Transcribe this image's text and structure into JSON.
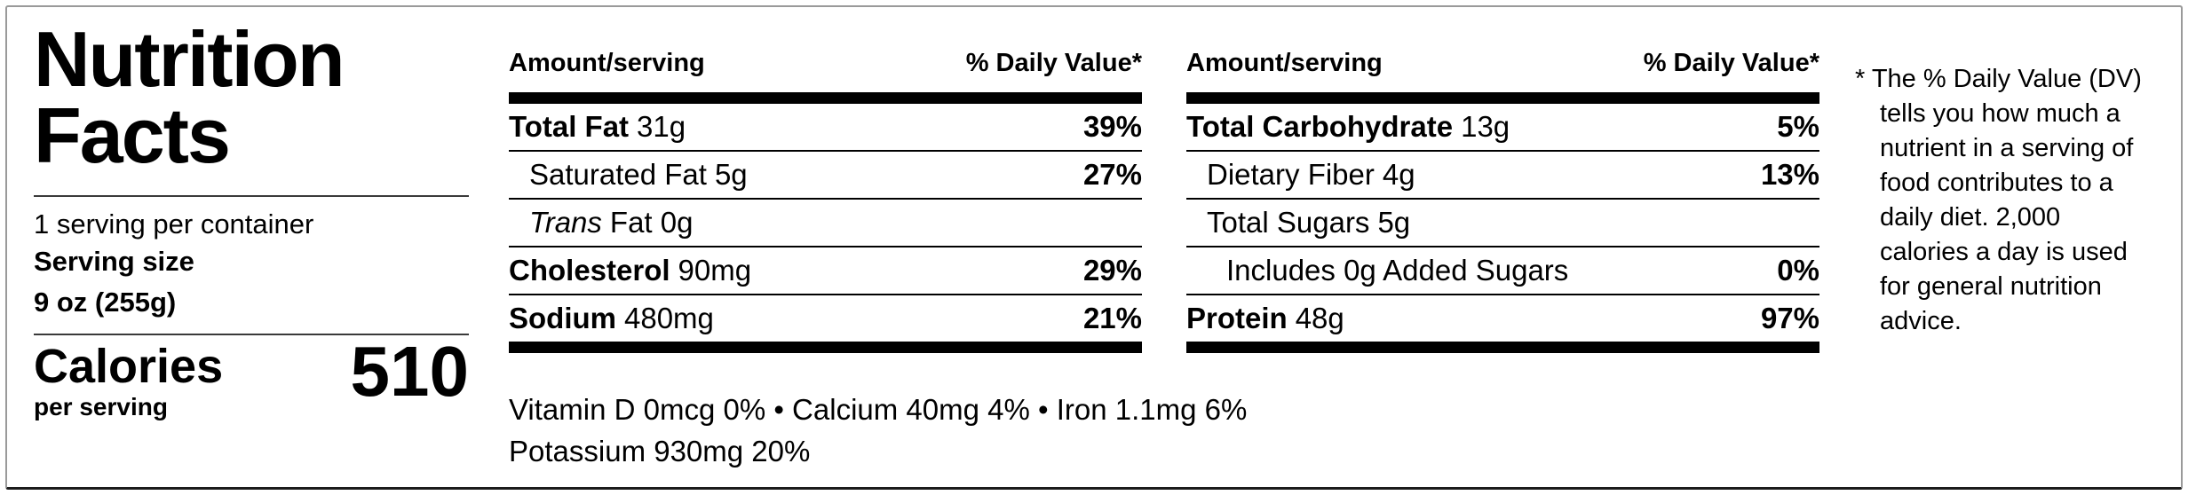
{
  "label": {
    "title": "Nutrition Facts",
    "servings_per_container": "1 serving per container",
    "serving_size_label": "Serving size",
    "serving_size_value": "9 oz (255g)",
    "calories_label": "Calories",
    "calories_sub": "per serving",
    "calories_value": "510"
  },
  "columns": [
    {
      "header_left": "Amount/serving",
      "header_right": "% Daily Value*",
      "rows": [
        {
          "label": "Total Fat",
          "amount": "31g",
          "dv": "39%"
        },
        {
          "label": "Saturated Fat",
          "amount": "5g",
          "dv": "27%"
        },
        {
          "label": "Trans",
          "amount": "Fat 0g",
          "dv": ""
        },
        {
          "label": "Cholesterol",
          "amount": "90mg",
          "dv": "29%"
        },
        {
          "label": "Sodium",
          "amount": "480mg",
          "dv": "21%"
        }
      ]
    },
    {
      "header_left": "Amount/serving",
      "header_right": "% Daily Value*",
      "rows": [
        {
          "label": "Total Carbohydrate",
          "amount": "13g",
          "dv": "5%"
        },
        {
          "label": "Dietary Fiber",
          "amount": "4g",
          "dv": "13%"
        },
        {
          "label": "Total Sugars",
          "amount": "5g",
          "dv": ""
        },
        {
          "label": "Includes 0g Added Sugars",
          "amount": "",
          "dv": "0%"
        },
        {
          "label": "Protein",
          "amount": "48g",
          "dv": "97%"
        }
      ]
    }
  ],
  "micronutrients": {
    "line1": "Vitamin D 0mcg 0% • Calcium 40mg 4% • Iron 1.1mg 6%",
    "line2": "Potassium 930mg 20%"
  },
  "footnote": {
    "text": "* The % Daily Value (DV) tells you how much a nutrient in a serving of food contributes to a daily diet. 2,000 calories a day is used for general nutrition advice."
  }
}
